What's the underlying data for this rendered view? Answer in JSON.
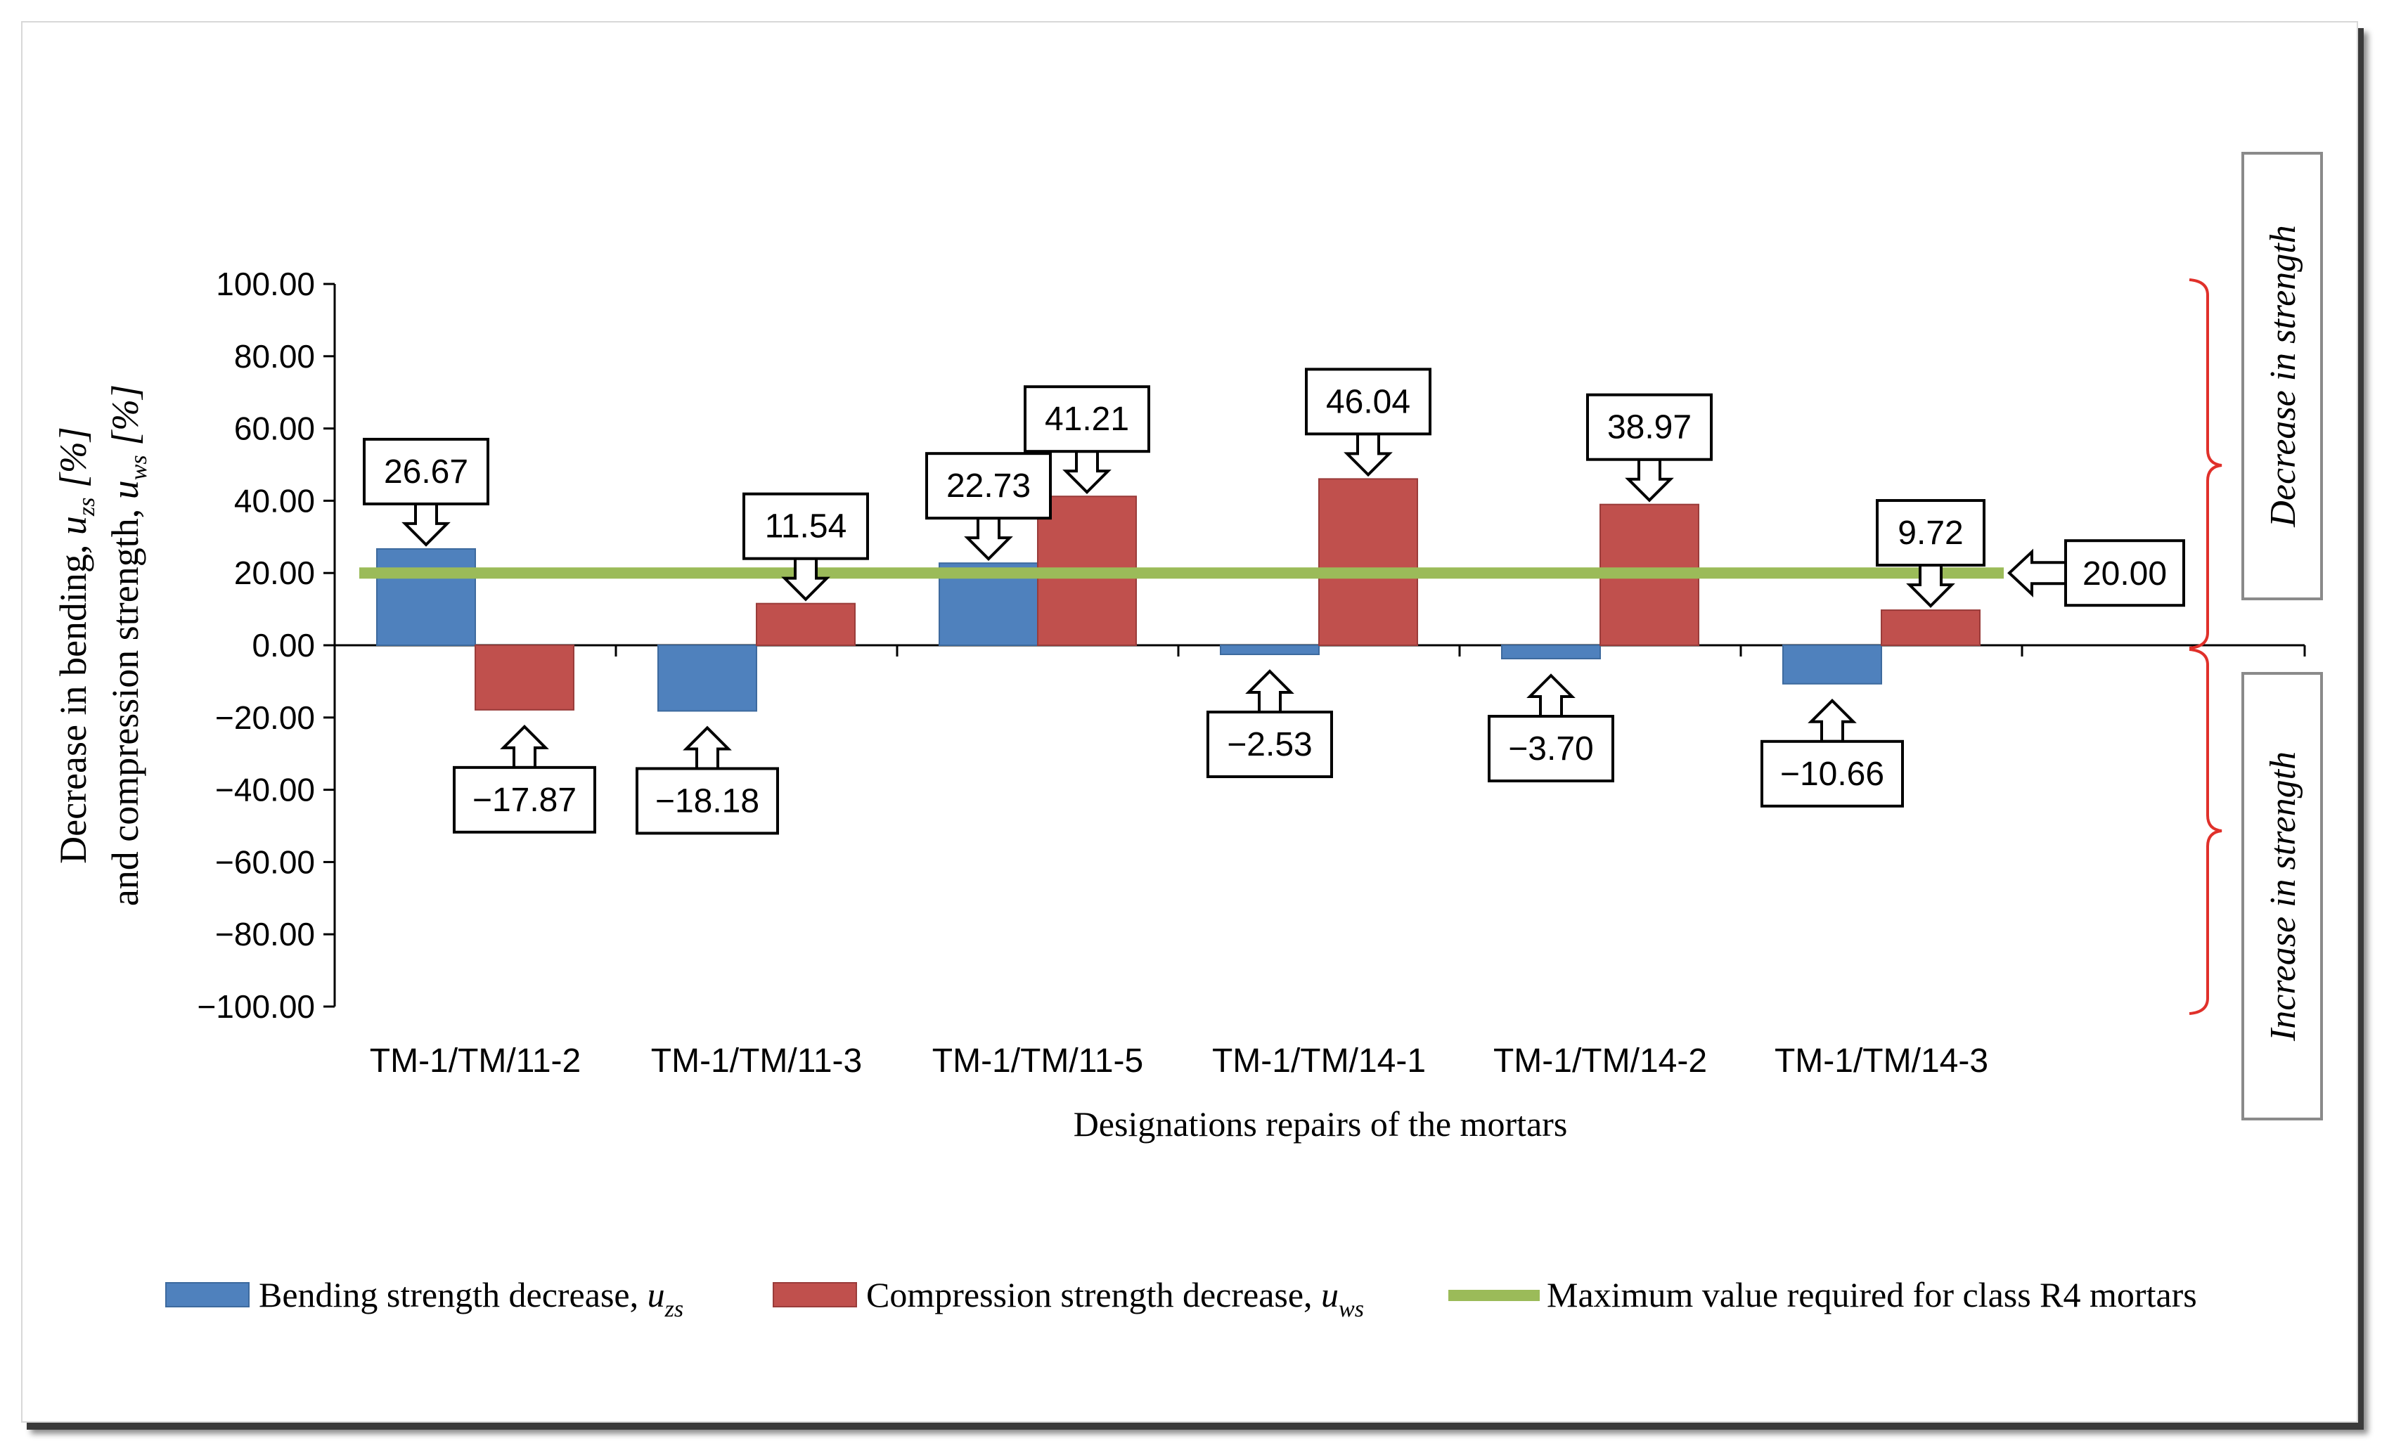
{
  "chart_data": {
    "type": "bar",
    "categories": [
      "TM-1/TM/11-2",
      "TM-1/TM/11-3",
      "TM-1/TM/11-5",
      "TM-1/TM/14-1",
      "TM-1/TM/14-2",
      "TM-1/TM/14-3"
    ],
    "series": [
      {
        "name": "Bending strength decrease, u_zs",
        "values": [
          26.67,
          -18.18,
          22.73,
          -2.53,
          -3.7,
          -10.66
        ],
        "color": "#4f81bd"
      },
      {
        "name": "Compression strength decrease, u_ws",
        "values": [
          -17.87,
          11.54,
          41.21,
          46.04,
          38.97,
          9.72
        ],
        "color": "#c0504d"
      }
    ],
    "reference_line": {
      "name": "Maximum value required for class R4 mortars",
      "value": 20.0,
      "label": "20.00",
      "color": "#9bbb59"
    },
    "data_labels": {
      "bending": [
        "26.67",
        "−18.18",
        "22.73",
        "−2.53",
        "−3.70",
        "−10.66"
      ],
      "compression": [
        "−17.87",
        "11.54",
        "41.21",
        "46.04",
        "38.97",
        "9.72"
      ]
    },
    "yticks": [
      "100.00",
      "80.00",
      "60.00",
      "40.00",
      "20.00",
      "0.00",
      "−20.00",
      "−40.00",
      "−60.00",
      "−80.00",
      "−100.00"
    ],
    "ylim": [
      -100,
      100
    ],
    "xlabel": "Designations repairs of the mortars",
    "ylabel_line1": "Decrease in bending, u",
    "ylabel_line1_sub": "zs",
    "ylabel_line1_unit": " [%]",
    "ylabel_line2": "and compression strength, u",
    "ylabel_line2_sub": "ws",
    "ylabel_line2_unit": " [%]",
    "region_labels": {
      "upper": "Decrease in strength",
      "lower": "Increase in strength"
    },
    "legend": {
      "position": "bottom",
      "items": [
        {
          "label": "Bending strength decrease, ",
          "var": "u",
          "sub": "zs",
          "color": "#4f81bd",
          "kind": "box"
        },
        {
          "label": "Compression strength decrease,  ",
          "var": "u",
          "sub": "ws",
          "color": "#c0504d",
          "kind": "box"
        },
        {
          "label": "Maximum value required for class R4 mortars",
          "var": "",
          "sub": "",
          "color": "#9bbb59",
          "kind": "line"
        }
      ]
    },
    "grid": false
  }
}
